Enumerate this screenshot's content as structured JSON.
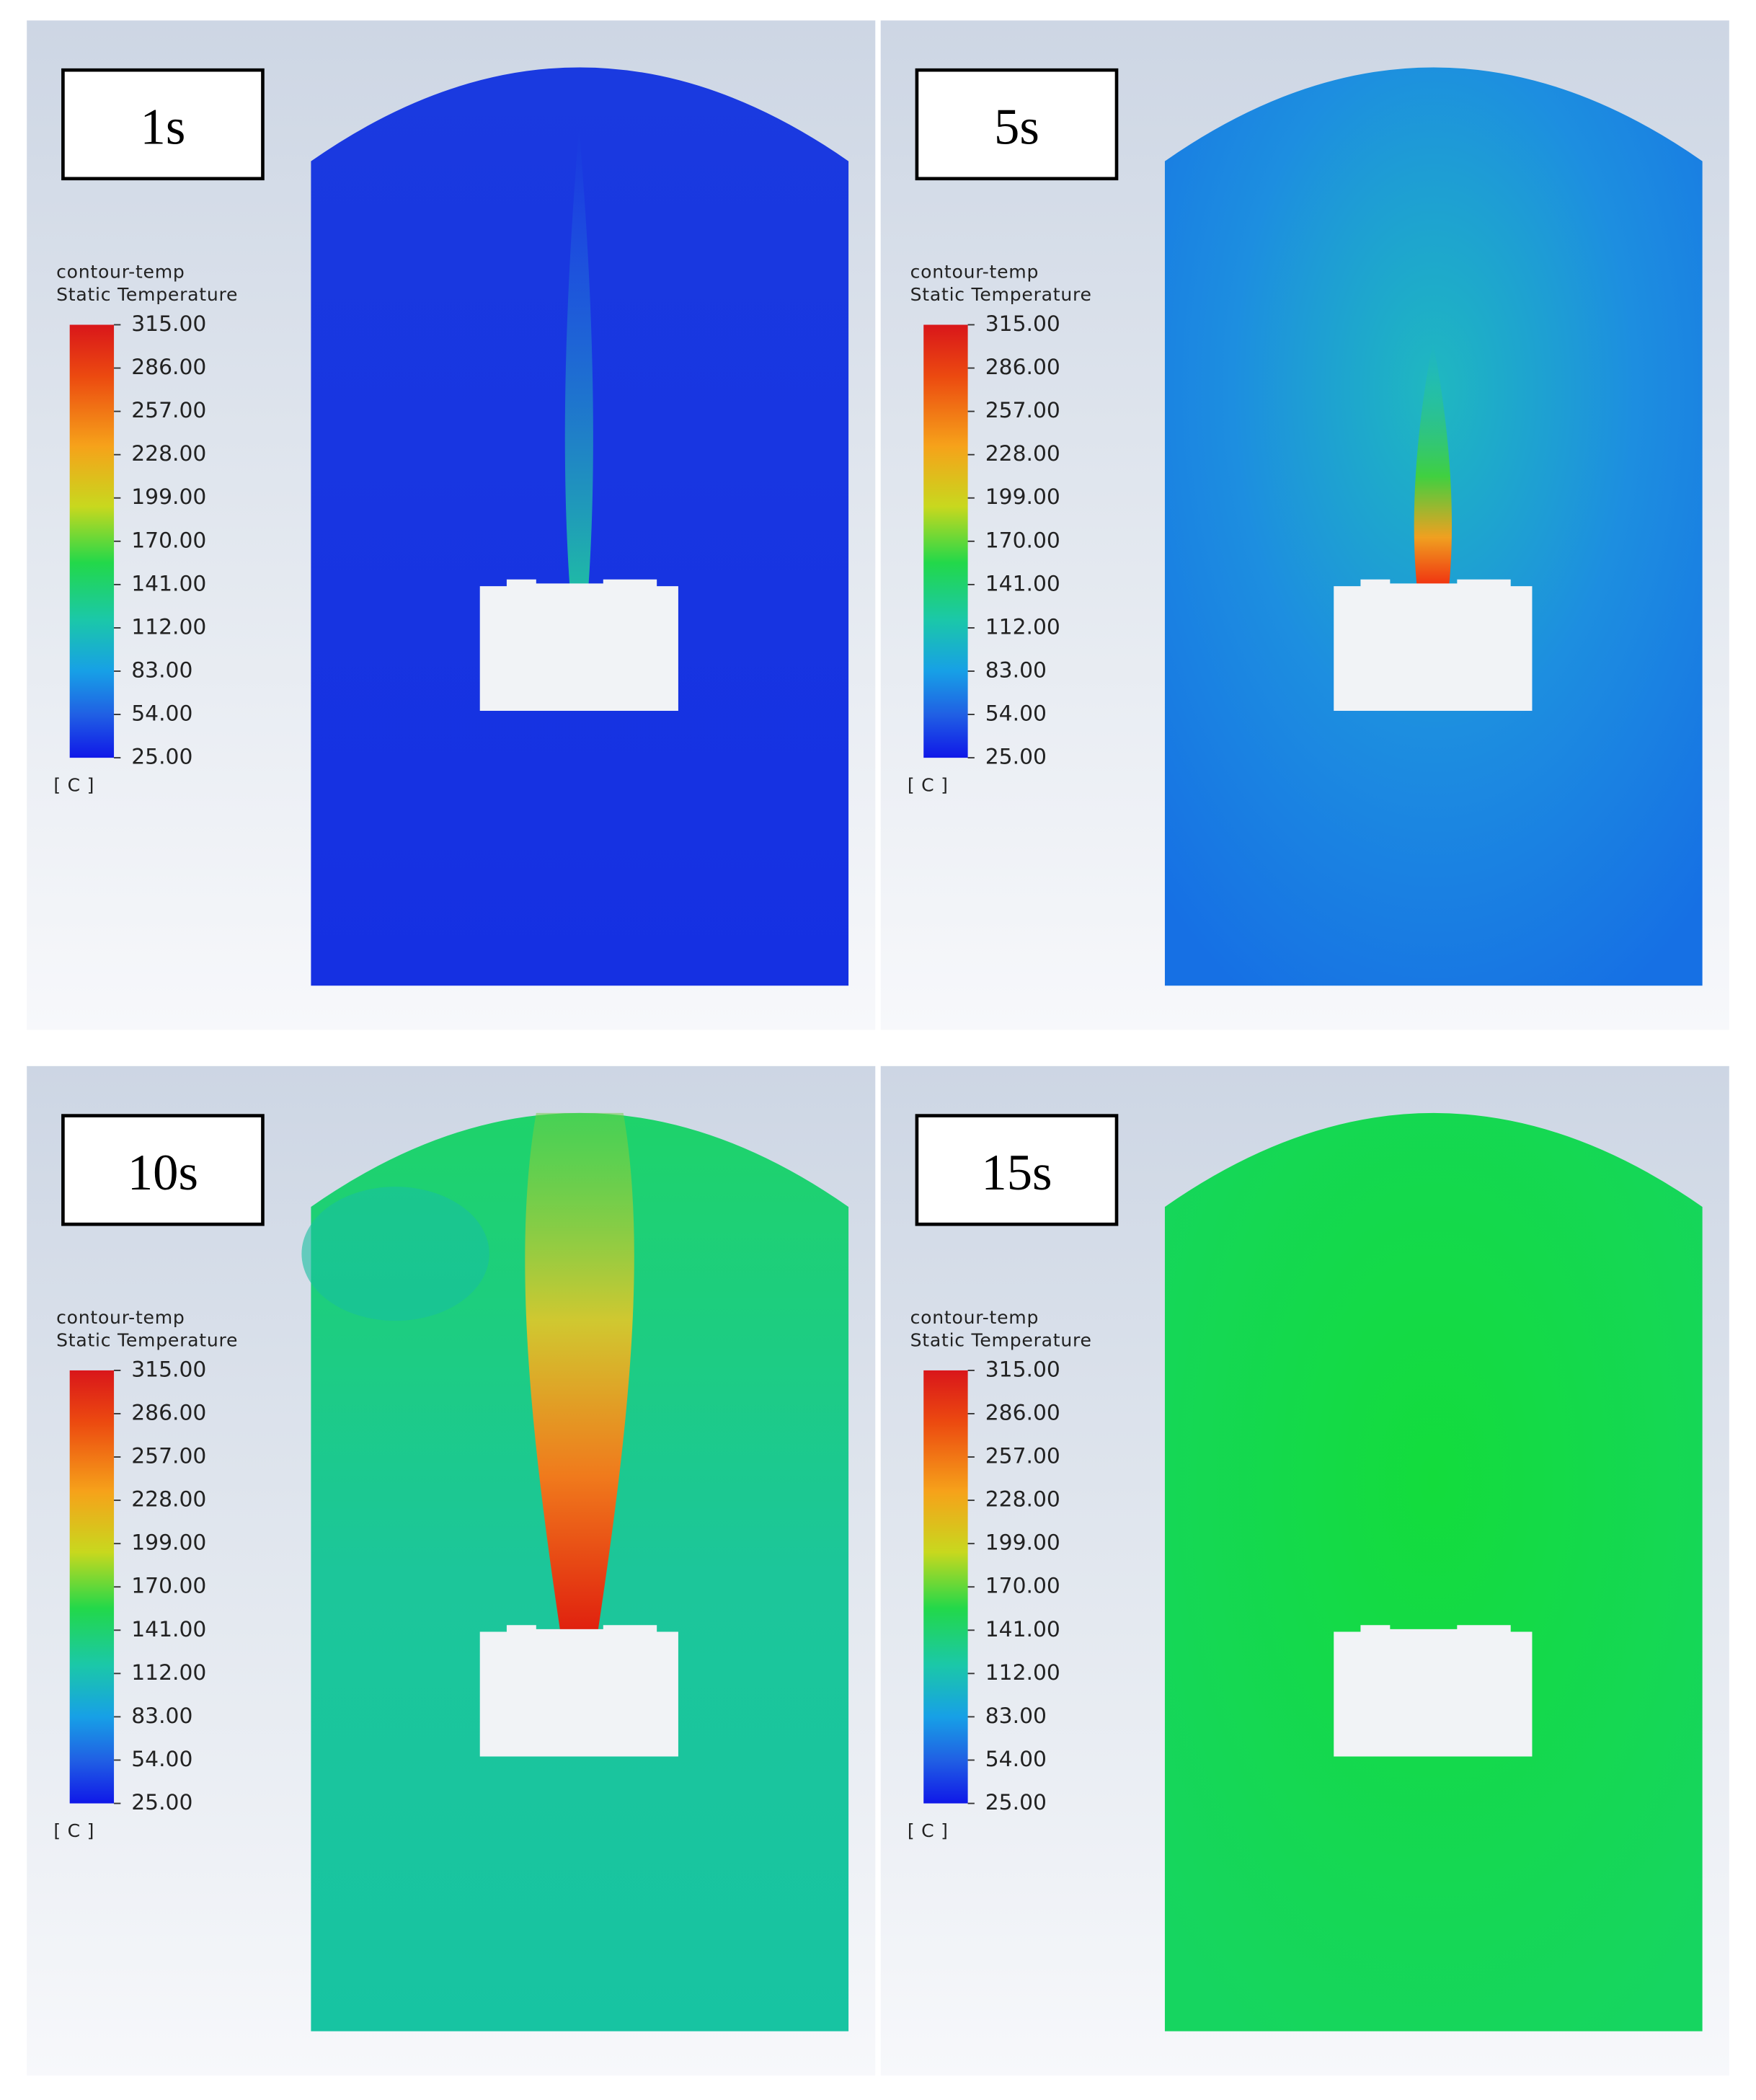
{
  "panels": [
    {
      "label": "1s",
      "legend": {
        "title": "contour-temp",
        "subtitle": "Static Temperature",
        "ticks": [
          "315.00",
          "286.00",
          "257.00",
          "228.00",
          "199.00",
          "170.00",
          "141.00",
          "112.00",
          "83.00",
          "54.00",
          "25.00"
        ],
        "unit": "[ C ]"
      }
    },
    {
      "label": "5s",
      "legend": {
        "title": "contour-temp",
        "subtitle": "Static Temperature",
        "ticks": [
          "315.00",
          "286.00",
          "257.00",
          "228.00",
          "199.00",
          "170.00",
          "141.00",
          "112.00",
          "83.00",
          "54.00",
          "25.00"
        ],
        "unit": "[ C ]"
      }
    },
    {
      "label": "10s",
      "legend": {
        "title": "contour-temp",
        "subtitle": "Static Temperature",
        "ticks": [
          "315.00",
          "286.00",
          "257.00",
          "228.00",
          "199.00",
          "170.00",
          "141.00",
          "112.00",
          "83.00",
          "54.00",
          "25.00"
        ],
        "unit": "[ C ]"
      }
    },
    {
      "label": "15s",
      "legend": {
        "title": "contour-temp",
        "subtitle": "Static Temperature",
        "ticks": [
          "315.00",
          "286.00",
          "257.00",
          "228.00",
          "199.00",
          "170.00",
          "141.00",
          "112.00",
          "83.00",
          "54.00",
          "25.00"
        ],
        "unit": "[ C ]"
      }
    }
  ]
}
